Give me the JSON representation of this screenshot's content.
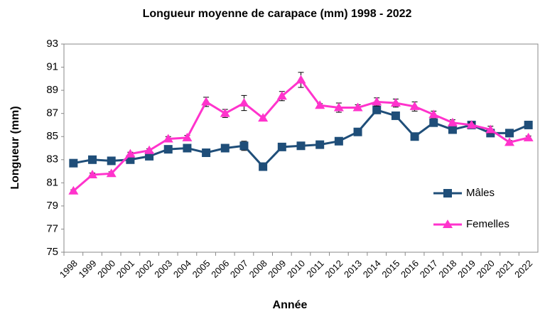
{
  "chart_data": {
    "type": "line",
    "title": "Longueur moyenne de carapace (mm) 1998 - 2022",
    "x_label": "Année",
    "y_label": "Longueur (mm)",
    "categories": [
      "1998",
      "1999",
      "2000",
      "2001",
      "2002",
      "2003",
      "2004",
      "2005",
      "2006",
      "2007",
      "2008",
      "2009",
      "2010",
      "2011",
      "2012",
      "2013",
      "2014",
      "2015",
      "2016",
      "2017",
      "2018",
      "2019",
      "2020",
      "2021",
      "2022"
    ],
    "series": [
      {
        "name": "Mâles",
        "color": "#1f4e79",
        "marker": "square",
        "values": [
          82.7,
          83.0,
          82.9,
          83.0,
          83.3,
          83.9,
          84.0,
          83.6,
          84.0,
          84.2,
          82.4,
          84.1,
          84.2,
          84.3,
          84.6,
          85.4,
          87.3,
          86.8,
          85.0,
          86.2,
          85.6,
          86.0,
          85.3,
          85.3,
          86.0
        ],
        "errors": [
          0.1,
          0.1,
          0.1,
          0.1,
          0.1,
          0.15,
          0.15,
          0.1,
          0.15,
          0.4,
          0.15,
          0.15,
          0.3,
          0.15,
          0.15,
          0.15,
          0.2,
          0.2,
          0.15,
          0.2,
          0.15,
          0.15,
          0.15,
          0.15,
          0.15
        ]
      },
      {
        "name": "Femelles",
        "color": "#ff33cc",
        "marker": "triangle",
        "values": [
          80.3,
          81.7,
          81.8,
          83.5,
          83.8,
          84.8,
          84.9,
          88.0,
          87.0,
          87.9,
          86.6,
          88.5,
          89.9,
          87.7,
          87.5,
          87.5,
          88.0,
          87.9,
          87.6,
          86.9,
          86.2,
          86.0,
          85.6,
          84.5,
          84.9
        ],
        "errors": [
          0.1,
          0.15,
          0.15,
          0.15,
          0.15,
          0.2,
          0.2,
          0.4,
          0.35,
          0.65,
          0.15,
          0.4,
          0.65,
          0.15,
          0.4,
          0.25,
          0.35,
          0.35,
          0.4,
          0.3,
          0.25,
          0.2,
          0.3,
          0.15,
          0.15
        ]
      }
    ],
    "ylim": [
      75,
      93
    ],
    "yticks": [
      75,
      77,
      79,
      81,
      83,
      85,
      87,
      89,
      91,
      93
    ],
    "grid": false,
    "legend": "right",
    "error_bars": true
  }
}
